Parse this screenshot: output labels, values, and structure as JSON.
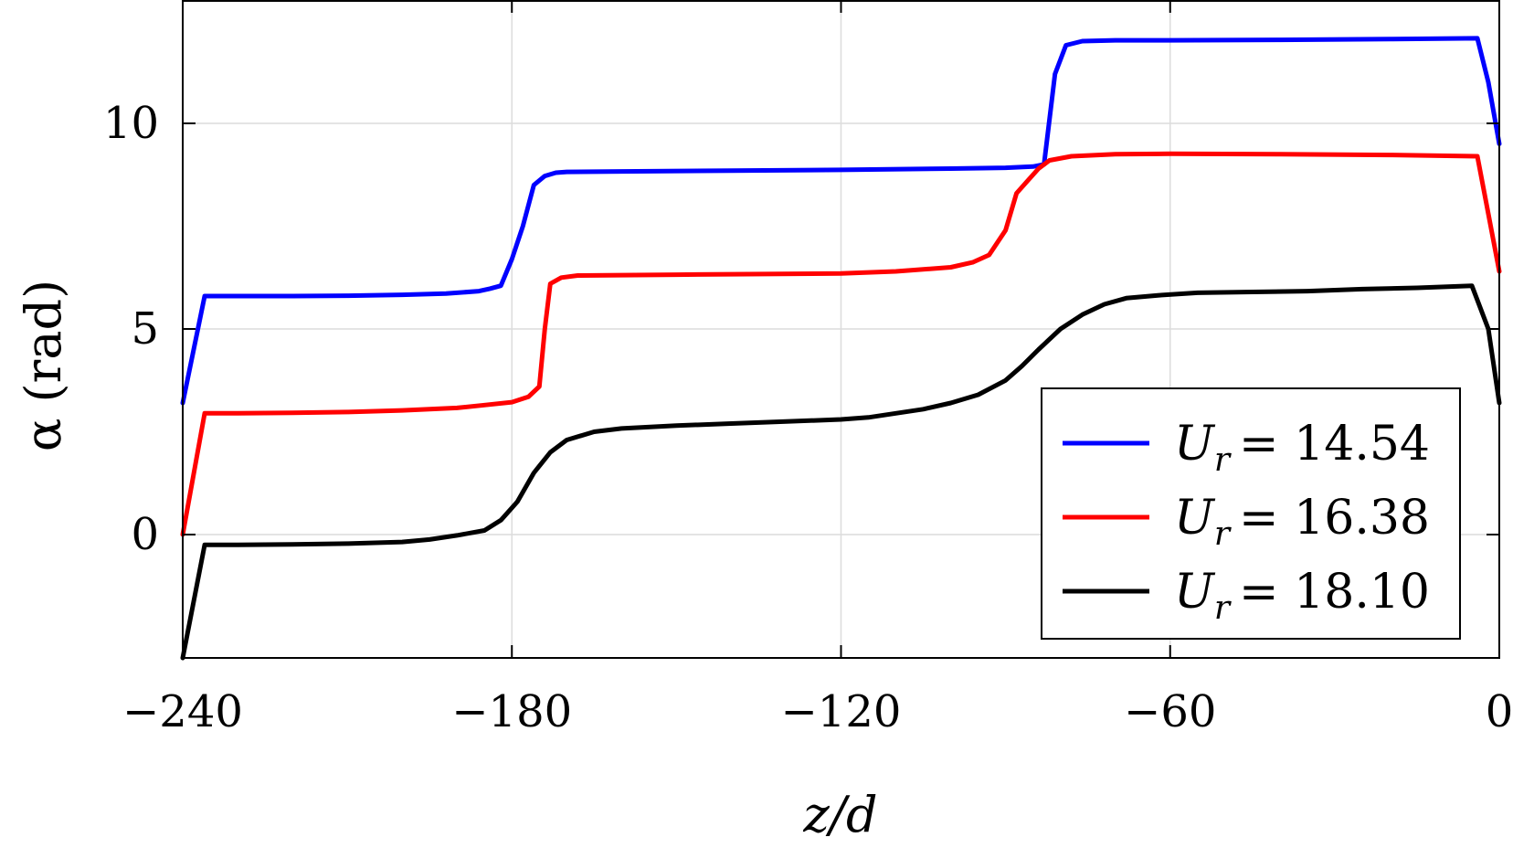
{
  "chart_data": {
    "type": "line",
    "xlabel": "z/d",
    "ylabel": "α (rad)",
    "xlim": [
      -240,
      0
    ],
    "ylim": [
      -3,
      13
    ],
    "xticks": [
      -240,
      -180,
      -120,
      -60,
      0
    ],
    "xtick_labels": [
      "−240",
      "−180",
      "−120",
      "−60",
      "0"
    ],
    "yticks": [
      0,
      5,
      10
    ],
    "ytick_labels": [
      "0",
      "5",
      "10"
    ],
    "grid": true,
    "legend_position": "bottom-right",
    "series": [
      {
        "name": "U_r = 14.54",
        "label_var": "U",
        "label_sub": "r",
        "label_value": "= 14.54",
        "color": "#0000ff",
        "points": [
          [
            -240,
            3.2
          ],
          [
            -236,
            5.8
          ],
          [
            -230,
            5.8
          ],
          [
            -220,
            5.8
          ],
          [
            -210,
            5.81
          ],
          [
            -200,
            5.83
          ],
          [
            -192,
            5.86
          ],
          [
            -186,
            5.92
          ],
          [
            -184,
            5.98
          ],
          [
            -182,
            6.05
          ],
          [
            -180,
            6.7
          ],
          [
            -178,
            7.5
          ],
          [
            -176,
            8.5
          ],
          [
            -174,
            8.72
          ],
          [
            -172,
            8.8
          ],
          [
            -170,
            8.82
          ],
          [
            -160,
            8.83
          ],
          [
            -140,
            8.85
          ],
          [
            -120,
            8.87
          ],
          [
            -100,
            8.9
          ],
          [
            -90,
            8.92
          ],
          [
            -85,
            8.95
          ],
          [
            -83,
            9.0
          ],
          [
            -81,
            11.2
          ],
          [
            -79,
            11.9
          ],
          [
            -76,
            12.0
          ],
          [
            -70,
            12.02
          ],
          [
            -60,
            12.02
          ],
          [
            -40,
            12.03
          ],
          [
            -20,
            12.05
          ],
          [
            -4,
            12.07
          ],
          [
            -2,
            11.0
          ],
          [
            0,
            9.5
          ]
        ]
      },
      {
        "name": "U_r = 16.38",
        "label_var": "U",
        "label_sub": "r",
        "label_value": "= 16.38",
        "color": "#ff0000",
        "points": [
          [
            -240,
            0.0
          ],
          [
            -236,
            2.95
          ],
          [
            -230,
            2.95
          ],
          [
            -220,
            2.96
          ],
          [
            -210,
            2.98
          ],
          [
            -200,
            3.02
          ],
          [
            -190,
            3.08
          ],
          [
            -185,
            3.15
          ],
          [
            -180,
            3.22
          ],
          [
            -177,
            3.35
          ],
          [
            -175,
            3.6
          ],
          [
            -174,
            5.0
          ],
          [
            -173,
            6.1
          ],
          [
            -171,
            6.25
          ],
          [
            -168,
            6.3
          ],
          [
            -160,
            6.31
          ],
          [
            -150,
            6.32
          ],
          [
            -140,
            6.33
          ],
          [
            -120,
            6.35
          ],
          [
            -110,
            6.4
          ],
          [
            -100,
            6.5
          ],
          [
            -96,
            6.62
          ],
          [
            -93,
            6.8
          ],
          [
            -90,
            7.4
          ],
          [
            -88,
            8.3
          ],
          [
            -86,
            8.6
          ],
          [
            -84,
            8.9
          ],
          [
            -82,
            9.1
          ],
          [
            -78,
            9.2
          ],
          [
            -70,
            9.25
          ],
          [
            -60,
            9.26
          ],
          [
            -40,
            9.25
          ],
          [
            -20,
            9.23
          ],
          [
            -4,
            9.2
          ],
          [
            -2,
            7.8
          ],
          [
            0,
            6.4
          ]
        ]
      },
      {
        "name": "U_r = 18.10",
        "label_var": "U",
        "label_sub": "r",
        "label_value": "= 18.10",
        "color": "#000000",
        "points": [
          [
            -240,
            -3.0
          ],
          [
            -236,
            -0.25
          ],
          [
            -230,
            -0.25
          ],
          [
            -220,
            -0.24
          ],
          [
            -210,
            -0.22
          ],
          [
            -200,
            -0.18
          ],
          [
            -195,
            -0.12
          ],
          [
            -190,
            -0.02
          ],
          [
            -185,
            0.1
          ],
          [
            -182,
            0.35
          ],
          [
            -179,
            0.8
          ],
          [
            -176,
            1.5
          ],
          [
            -173,
            2.0
          ],
          [
            -170,
            2.3
          ],
          [
            -165,
            2.5
          ],
          [
            -160,
            2.58
          ],
          [
            -150,
            2.65
          ],
          [
            -140,
            2.7
          ],
          [
            -130,
            2.75
          ],
          [
            -120,
            2.8
          ],
          [
            -115,
            2.85
          ],
          [
            -110,
            2.95
          ],
          [
            -105,
            3.05
          ],
          [
            -100,
            3.2
          ],
          [
            -95,
            3.4
          ],
          [
            -90,
            3.75
          ],
          [
            -87,
            4.1
          ],
          [
            -84,
            4.5
          ],
          [
            -80,
            5.0
          ],
          [
            -76,
            5.35
          ],
          [
            -72,
            5.6
          ],
          [
            -68,
            5.75
          ],
          [
            -62,
            5.82
          ],
          [
            -55,
            5.88
          ],
          [
            -45,
            5.9
          ],
          [
            -35,
            5.92
          ],
          [
            -25,
            5.97
          ],
          [
            -15,
            6.0
          ],
          [
            -5,
            6.05
          ],
          [
            -2,
            5.0
          ],
          [
            0,
            3.2
          ]
        ]
      }
    ]
  }
}
